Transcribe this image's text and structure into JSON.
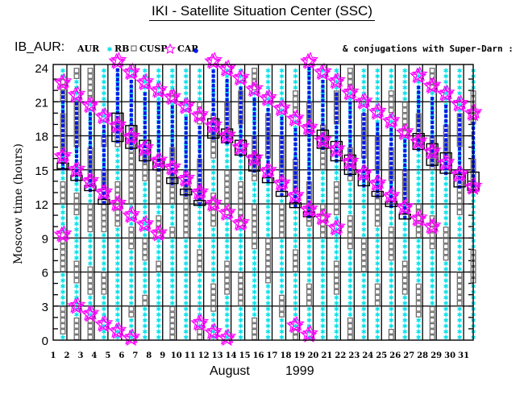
{
  "header": {
    "title": "IKI - Satellite Situation Center (SSC)",
    "instrument": "IB_AUR:",
    "conjugations": "& conjugations with Super-Darn :"
  },
  "chart_data": {
    "type": "scatter",
    "title": "IKI - Satellite Situation Center (SSC)",
    "xlabel_month": "August",
    "xlabel_year": "1999",
    "ylabel": "Moscow time (hours)",
    "ylim": [
      0,
      24
    ],
    "yticks": [
      "0",
      "3",
      "6",
      "9",
      "12",
      "15",
      "18",
      "21",
      "24"
    ],
    "xticks": [
      "1",
      "2",
      "3",
      "4",
      "5",
      "6",
      "7",
      "8",
      "9",
      "10",
      "11",
      "12",
      "13",
      "14",
      "15",
      "16",
      "17",
      "18",
      "19",
      "20",
      "21",
      "22",
      "23",
      "24",
      "25",
      "26",
      "27",
      "28",
      "29",
      "30",
      "31"
    ],
    "grid": true,
    "legend": [
      {
        "label": "AUR",
        "marker": "asterisk",
        "color": "#00e0e8"
      },
      {
        "label": "RB",
        "marker": "square",
        "color": "#6e6e6e"
      },
      {
        "label": "CUSP",
        "marker": "star",
        "color": "#ff00ff"
      },
      {
        "label": "CAP",
        "marker": "dot",
        "color": "#0018e8"
      }
    ],
    "legend_placement": "top-left",
    "conjugation_marker": "box",
    "days": [
      {
        "day": 1,
        "aur": [
          [
            0,
            0.5
          ],
          [
            3,
            6
          ],
          [
            9.6,
            12
          ],
          [
            14,
            16.5
          ],
          [
            20,
            21
          ],
          [
            23,
            24
          ]
        ],
        "cusp": [
          22.7,
          16.2,
          9.3
        ],
        "cap": [
          15.1,
          22
        ],
        "conj": [
          15.1,
          15.6
        ]
      },
      {
        "day": 2,
        "aur": [
          [
            2,
            5
          ],
          [
            7,
            11
          ],
          [
            13,
            17
          ],
          [
            21,
            23
          ]
        ],
        "cusp": [
          21.6,
          15,
          3
        ],
        "cap": [
          14.1,
          20.9
        ],
        "conj": [
          14.1,
          14.5
        ]
      },
      {
        "day": 3,
        "aur": [
          [
            2,
            4
          ],
          [
            6.5,
            9.5
          ],
          [
            12,
            14
          ],
          [
            17,
            21
          ]
        ],
        "cusp": [
          20.7,
          14,
          2.3
        ],
        "cap": [
          13.2,
          20
        ],
        "conj": [
          13.2,
          13.6
        ]
      },
      {
        "day": 4,
        "aur": [
          [
            0,
            4
          ],
          [
            6,
            9.5
          ],
          [
            15,
            17
          ],
          [
            18,
            24
          ]
        ],
        "cusp": [
          19.7,
          13,
          1.4
        ],
        "cap": [
          12.1,
          19
        ],
        "conj": [
          12.1,
          12.4
        ]
      },
      {
        "day": 5,
        "aur": [
          [
            0,
            10
          ],
          [
            14,
            17
          ],
          [
            20,
            24
          ]
        ],
        "cusp": [
          24.6,
          18.9,
          12,
          0.8
        ],
        "cap": [
          17.5,
          24
        ],
        "conj": [
          17.5,
          20
        ]
      },
      {
        "day": 6,
        "aur": [
          [
            0,
            2
          ],
          [
            3,
            8
          ],
          [
            10,
            12
          ],
          [
            19,
            24
          ]
        ],
        "cusp": [
          23.6,
          17.9,
          11,
          0.2
        ],
        "cap": [
          16.9,
          22.9
        ],
        "conj": [
          16.9,
          18.9
        ]
      },
      {
        "day": 7,
        "aur": [
          [
            0,
            3
          ],
          [
            4,
            7
          ],
          [
            9,
            14
          ],
          [
            17,
            24
          ]
        ],
        "cusp": [
          22.7,
          16.9,
          10.2
        ],
        "cap": [
          15.8,
          22
        ],
        "conj": [
          15.8,
          17.6
        ]
      },
      {
        "day": 8,
        "aur": [
          [
            0,
            6
          ],
          [
            7,
            9
          ],
          [
            11,
            12
          ],
          [
            16,
            24
          ]
        ],
        "cusp": [
          22,
          15.8,
          9.4
        ],
        "cap": [
          15,
          21.3
        ],
        "conj": [
          15,
          15.9
        ]
      },
      {
        "day": 9,
        "aur": [
          [
            3,
            9
          ],
          [
            10,
            12
          ],
          [
            17,
            21
          ],
          [
            22,
            24
          ]
        ],
        "cusp": [
          21.4,
          15.2
        ],
        "cap": [
          13.8,
          20.7
        ],
        "conj": [
          13.8,
          14.3
        ]
      },
      {
        "day": 10,
        "aur": [
          [
            0,
            9
          ],
          [
            15,
            24
          ]
        ],
        "cusp": [
          20.6,
          14.2
        ],
        "cap": [
          12.8,
          19.9
        ],
        "conj": [
          12.8,
          13.3
        ]
      },
      {
        "day": 11,
        "aur": [
          [
            1,
            6
          ],
          [
            8,
            12
          ],
          [
            16,
            19
          ],
          [
            21,
            24
          ]
        ],
        "cusp": [
          19.8,
          13,
          1.5
        ],
        "cap": [
          12,
          19.1
        ],
        "conj": [
          12,
          12.3
        ]
      },
      {
        "day": 12,
        "aur": [
          [
            0,
            2.5
          ],
          [
            5,
            10
          ],
          [
            13,
            16
          ],
          [
            20,
            24
          ]
        ],
        "cusp": [
          24.8,
          18.9,
          12,
          0.7
        ],
        "cap": [
          17.8,
          24
        ],
        "conj": [
          17.8,
          19.5
        ]
      },
      {
        "day": 13,
        "aur": [
          [
            0,
            4
          ],
          [
            7,
            11
          ],
          [
            15,
            18
          ],
          [
            21,
            24
          ]
        ],
        "cusp": [
          23.9,
          18,
          11.2,
          0.2
        ],
        "cap": [
          17.4,
          23.2
        ],
        "conj": [
          17.4,
          18.6
        ]
      },
      {
        "day": 14,
        "aur": [
          [
            0,
            3
          ],
          [
            6,
            10
          ],
          [
            14,
            19
          ],
          [
            22,
            24
          ]
        ],
        "cusp": [
          23.1,
          17,
          10.3
        ],
        "cap": [
          16.3,
          22.4
        ],
        "conj": [
          16.3,
          17.6
        ]
      },
      {
        "day": 15,
        "aur": [
          [
            2,
            8
          ],
          [
            12,
            14
          ],
          [
            18,
            22
          ]
        ],
        "cusp": [
          22.1,
          16
        ],
        "cap": [
          14.9,
          21.4
        ],
        "conj": [
          14.9,
          16.3
        ]
      },
      {
        "day": 16,
        "aur": [
          [
            0,
            5
          ],
          [
            9,
            16
          ],
          [
            20,
            24
          ]
        ],
        "cusp": [
          21.3,
          14.9
        ],
        "cap": [
          14,
          20.6
        ],
        "conj": [
          14,
          14.3
        ]
      },
      {
        "day": 17,
        "aur": [
          [
            0,
            2
          ],
          [
            4,
            9
          ],
          [
            12,
            14
          ],
          [
            18,
            24
          ]
        ],
        "cusp": [
          20.4,
          13.8
        ],
        "cap": [
          12.8,
          19.7
        ],
        "conj": [
          12.8,
          13.1
        ]
      },
      {
        "day": 18,
        "aur": [
          [
            1,
            6
          ],
          [
            8,
            13
          ],
          [
            16,
            20
          ],
          [
            22,
            24
          ]
        ],
        "cusp": [
          19.5,
          12.7,
          1.3
        ],
        "cap": [
          11.8,
          18.8
        ],
        "conj": [
          11.8,
          12.1
        ]
      },
      {
        "day": 19,
        "aur": [
          [
            0,
            3
          ],
          [
            5,
            10
          ],
          [
            14,
            18
          ],
          [
            21,
            24
          ]
        ],
        "cusp": [
          24.7,
          18.7,
          11.5,
          0.5
        ],
        "cap": [
          10.9,
          24
        ],
        "conj": [
          10.9,
          11.3
        ]
      },
      {
        "day": 20,
        "aur": [
          [
            0,
            9
          ],
          [
            12,
            15
          ],
          [
            19,
            24
          ]
        ],
        "cusp": [
          23.6,
          17.6,
          10.8
        ],
        "cap": [
          16.9,
          22.9
        ],
        "conj": [
          16.9,
          18.5
        ]
      },
      {
        "day": 21,
        "aur": [
          [
            0,
            4
          ],
          [
            7,
            11
          ],
          [
            14,
            19
          ],
          [
            22,
            24
          ]
        ],
        "cusp": [
          22.8,
          16.8,
          9.9
        ],
        "cap": [
          15.8,
          22.1
        ],
        "conj": [
          15.8,
          17.5
        ]
      },
      {
        "day": 22,
        "aur": [
          [
            2,
            8
          ],
          [
            11,
            14
          ],
          [
            17,
            22
          ]
        ],
        "cusp": [
          21.8,
          15.7
        ],
        "cap": [
          14.6,
          21.1
        ],
        "conj": [
          14.6,
          16.3
        ]
      },
      {
        "day": 23,
        "aur": [
          [
            0,
            6
          ],
          [
            9,
            16
          ],
          [
            20,
            24
          ]
        ],
        "cusp": [
          21,
          14.7
        ],
        "cap": [
          13.6,
          20.3
        ],
        "conj": [
          13.6,
          15
        ]
      },
      {
        "day": 24,
        "aur": [
          [
            0,
            3
          ],
          [
            5,
            10
          ],
          [
            13,
            15
          ],
          [
            18,
            24
          ]
        ],
        "cusp": [
          20.1,
          13.8
        ],
        "cap": [
          12.7,
          19.4
        ],
        "conj": [
          12.7,
          13.1
        ]
      },
      {
        "day": 25,
        "aur": [
          [
            1,
            7
          ],
          [
            10,
            14
          ],
          [
            17,
            20
          ],
          [
            22,
            24
          ]
        ],
        "cusp": [
          19.3,
          12.7
        ],
        "cap": [
          11.8,
          18.6
        ],
        "conj": [
          11.8,
          12.2
        ]
      },
      {
        "day": 26,
        "aur": [
          [
            0,
            4
          ],
          [
            7,
            12
          ],
          [
            15,
            18
          ],
          [
            21,
            24
          ]
        ],
        "cusp": [
          18.3,
          11.7
        ],
        "cap": [
          10.8,
          17.6
        ],
        "conj": [
          10.8,
          11.1
        ]
      },
      {
        "day": 27,
        "aur": [
          [
            0,
            2
          ],
          [
            5,
            9
          ],
          [
            12,
            17
          ],
          [
            20,
            24
          ]
        ],
        "cusp": [
          23.3,
          17.5,
          10.7
        ],
        "cap": [
          16.8,
          22.6
        ],
        "conj": [
          16.8,
          18.2
        ]
      },
      {
        "day": 28,
        "aur": [
          [
            3,
            8
          ],
          [
            11,
            15
          ],
          [
            18,
            22
          ]
        ],
        "cusp": [
          22.4,
          16.6,
          10
        ],
        "cap": [
          15.4,
          21.7
        ],
        "conj": [
          15.4,
          17.3
        ]
      },
      {
        "day": 29,
        "aur": [
          [
            0,
            7
          ],
          [
            10,
            16
          ],
          [
            19,
            24
          ]
        ],
        "cusp": [
          21.7,
          15.6
        ],
        "cap": [
          14.7,
          21
        ],
        "conj": [
          14.7,
          16.5
        ]
      },
      {
        "day": 30,
        "aur": [
          [
            0,
            3
          ],
          [
            6,
            11
          ],
          [
            14,
            17
          ],
          [
            20,
            24
          ]
        ],
        "cusp": [
          20.8,
          14.6
        ],
        "cap": [
          13.5,
          20.1
        ],
        "conj": [
          13.5,
          14.6
        ]
      },
      {
        "day": 31,
        "aur": [
          [
            0,
            5
          ],
          [
            8,
            13
          ],
          [
            16,
            19
          ],
          [
            22,
            24
          ]
        ],
        "cusp": [
          20,
          13.5
        ],
        "cap": [
          13.2,
          19.3
        ],
        "conj": [
          13.2,
          14.8
        ]
      }
    ]
  }
}
